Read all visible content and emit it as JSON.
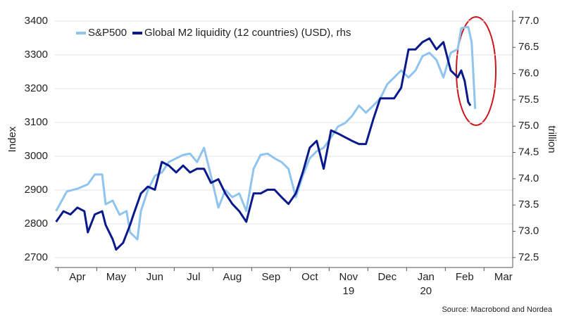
{
  "chart_data": {
    "type": "line",
    "ylabel": "Index",
    "y2label": "trillion",
    "source": "Source: Macrobond and Nordea",
    "annotations": [
      "19",
      "20"
    ],
    "xlim": [
      3.92,
      15.74
    ],
    "xticks": [
      {
        "value": 4.5,
        "label": "Apr"
      },
      {
        "value": 5.5,
        "label": "May"
      },
      {
        "value": 6.5,
        "label": "Jun"
      },
      {
        "value": 7.5,
        "label": "Jul"
      },
      {
        "value": 8.5,
        "label": "Aug"
      },
      {
        "value": 9.5,
        "label": "Sep"
      },
      {
        "value": 10.5,
        "label": "Oct"
      },
      {
        "value": 11.5,
        "label": "Nov"
      },
      {
        "value": 12.5,
        "label": "Dec"
      },
      {
        "value": 13.5,
        "label": "Jan"
      },
      {
        "value": 14.5,
        "label": "Feb"
      },
      {
        "value": 15.5,
        "label": "Mar"
      }
    ],
    "ylim": [
      2671,
      3431
    ],
    "yticks": [
      2700,
      2800,
      2900,
      3000,
      3100,
      3200,
      3300,
      3400
    ],
    "y2lim": [
      72.31,
      77.2
    ],
    "y2ticks": [
      72.5,
      {
        "value": 73,
        "label": "73.0"
      },
      73.5,
      {
        "value": 74,
        "label": "74.0"
      },
      74.5,
      {
        "value": 75,
        "label": "75.0"
      },
      75.5,
      {
        "value": 76,
        "label": "76.0"
      },
      76.5,
      {
        "value": 77,
        "label": "77.0"
      }
    ],
    "grid": true,
    "legend": "top-left",
    "series": [
      {
        "name": "S&P500",
        "color": "#8ec4ee",
        "x": [
          3.95,
          4.23,
          4.5,
          4.77,
          4.95,
          5.14,
          5.23,
          5.41,
          5.59,
          5.77,
          5.86,
          6.05,
          6.14,
          6.32,
          6.5,
          6.68,
          6.86,
          7.05,
          7.23,
          7.41,
          7.59,
          7.77,
          7.95,
          8.14,
          8.32,
          8.5,
          8.68,
          8.86,
          9.05,
          9.23,
          9.41,
          9.59,
          9.77,
          9.95,
          10.14,
          10.32,
          10.5,
          10.68,
          10.86,
          11.05,
          11.23,
          11.41,
          11.59,
          11.77,
          11.95,
          12.14,
          12.32,
          12.5,
          12.68,
          12.86,
          13.05,
          13.23,
          13.41,
          13.59,
          13.77,
          13.95,
          14.14,
          14.32,
          14.41,
          14.59,
          14.68,
          14.77
        ],
        "values": [
          2838,
          2896,
          2904,
          2917,
          2946,
          2946,
          2858,
          2869,
          2827,
          2838,
          2775,
          2754,
          2838,
          2900,
          2942,
          2952,
          2983,
          2994,
          3004,
          3008,
          2983,
          3025,
          2942,
          2848,
          2900,
          2879,
          2890,
          2838,
          2963,
          3004,
          3008,
          2994,
          2983,
          2963,
          2879,
          2942,
          2994,
          3015,
          3025,
          3056,
          3088,
          3098,
          3119,
          3150,
          3129,
          3150,
          3171,
          3213,
          3233,
          3254,
          3233,
          3254,
          3296,
          3306,
          3285,
          3233,
          3306,
          3317,
          3379,
          3383,
          3338,
          3140
        ]
      },
      {
        "name": "Global M2 liquidity (12 countries) (USD), rhs",
        "color": "#0a1a8c",
        "axis": "y2",
        "x": [
          3.95,
          4.14,
          4.32,
          4.5,
          4.68,
          4.77,
          4.95,
          5.14,
          5.23,
          5.41,
          5.5,
          5.68,
          5.86,
          5.95,
          6.14,
          6.32,
          6.5,
          6.68,
          6.86,
          7.05,
          7.23,
          7.41,
          7.59,
          7.77,
          7.95,
          8.14,
          8.32,
          8.5,
          8.68,
          8.86,
          9.05,
          9.23,
          9.41,
          9.59,
          9.77,
          9.95,
          10.14,
          10.32,
          10.5,
          10.68,
          10.86,
          11.05,
          11.23,
          11.41,
          11.59,
          11.77,
          11.95,
          12.14,
          12.32,
          12.5,
          12.68,
          12.86,
          13.05,
          13.23,
          13.41,
          13.59,
          13.77,
          13.95,
          14.14,
          14.32,
          14.41,
          14.5,
          14.59,
          14.65
        ],
        "values": [
          73.18,
          73.38,
          73.32,
          73.45,
          73.38,
          72.98,
          73.32,
          73.38,
          73.12,
          72.85,
          72.65,
          72.78,
          73.12,
          73.32,
          73.72,
          73.85,
          73.79,
          74.32,
          74.25,
          74.12,
          74.25,
          74.12,
          74.19,
          74.19,
          73.92,
          73.99,
          73.72,
          73.52,
          73.38,
          73.18,
          73.72,
          73.72,
          73.79,
          73.79,
          73.65,
          73.52,
          73.72,
          74.12,
          74.59,
          74.72,
          74.19,
          74.92,
          74.86,
          74.79,
          74.72,
          74.66,
          74.66,
          75.13,
          75.53,
          75.53,
          75.53,
          75.73,
          76.46,
          76.46,
          76.6,
          76.67,
          76.46,
          76.6,
          76.06,
          75.93,
          76.06,
          75.86,
          75.46,
          75.39
        ]
      }
    ]
  }
}
